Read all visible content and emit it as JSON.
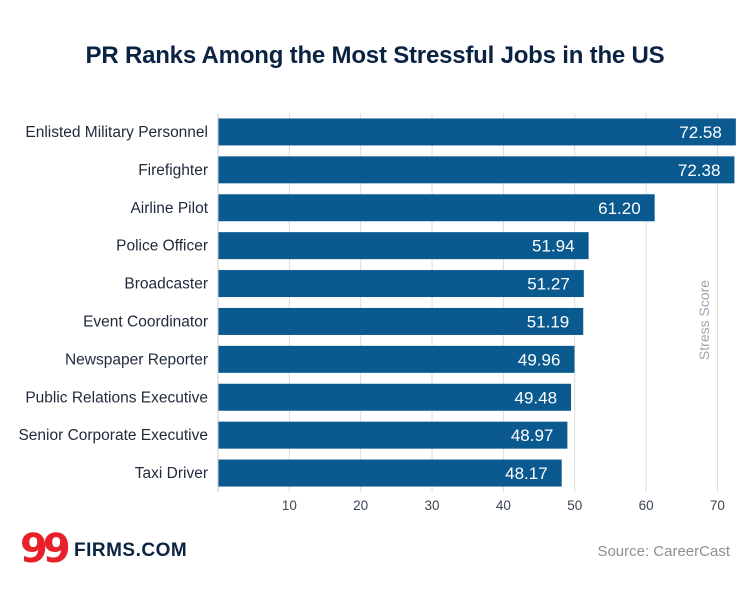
{
  "chart_data": {
    "type": "bar",
    "orientation": "horizontal",
    "title": "PR Ranks Among the Most Stressful Jobs in the US",
    "categories": [
      "Enlisted Military Personnel",
      "Firefighter",
      "Airline Pilot",
      "Police Officer",
      "Broadcaster",
      "Event Coordinator",
      "Newspaper Reporter",
      "Public Relations Executive",
      "Senior Corporate Executive",
      "Taxi Driver"
    ],
    "values": [
      72.58,
      72.38,
      61.2,
      51.94,
      51.27,
      51.19,
      49.96,
      49.48,
      48.97,
      48.17
    ],
    "value_labels": [
      "72.58",
      "72.38",
      "61.20",
      "51.94",
      "51.27",
      "51.19",
      "49.96",
      "49.48",
      "48.97",
      "48.17"
    ],
    "xlabel": "Stress Score",
    "xlim": [
      0,
      72.6
    ],
    "xticks": [
      10,
      20,
      30,
      40,
      50,
      60,
      70
    ],
    "grid": true,
    "bar_color": "#0b5a8f"
  },
  "footer": {
    "logo_number": "99",
    "logo_text": "FIRMS.COM",
    "source": "Source: CareerCast"
  },
  "colors": {
    "title": "#0b2342",
    "logo_red": "#e8202a",
    "source": "#8a8f98"
  }
}
